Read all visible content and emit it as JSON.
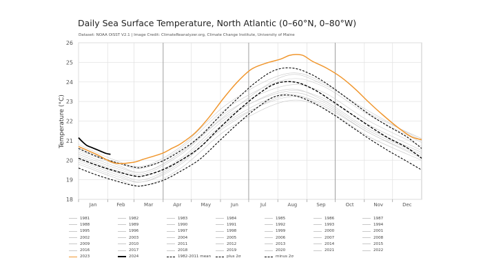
{
  "title": "Daily Sea Surface Temperature, North Atlantic (0–60°N, 0–80°W)",
  "subtitle": "Dataset: NOAA OISST V2.1 | Image Credit: ClimateReanalyzer.org, Climate Change Institute, University of Maine",
  "chart_data": {
    "type": "line",
    "ylabel": "Temperature (°C)",
    "ylim": [
      18,
      26
    ],
    "yticks": [
      18,
      19,
      20,
      21,
      22,
      23,
      24,
      25,
      26
    ],
    "xlim": [
      1,
      366
    ],
    "months": [
      {
        "label": "Jan",
        "start": 1
      },
      {
        "label": "Feb",
        "start": 32
      },
      {
        "label": "Mar",
        "start": 60
      },
      {
        "label": "Apr",
        "start": 91
      },
      {
        "label": "May",
        "start": 121
      },
      {
        "label": "Jun",
        "start": 152
      },
      {
        "label": "Jul",
        "start": 182
      },
      {
        "label": "Aug",
        "start": 213
      },
      {
        "label": "Sep",
        "start": 244
      },
      {
        "label": "Oct",
        "start": 274
      },
      {
        "label": "Nov",
        "start": 305
      },
      {
        "label": "Dec",
        "start": 335
      }
    ],
    "series": [
      {
        "name": "1982-2011 mean",
        "color": "#000000",
        "style": "dashed-bold",
        "x": [
          1,
          20,
          40,
          60,
          70,
          90,
          110,
          130,
          150,
          170,
          190,
          210,
          230,
          250,
          270,
          290,
          310,
          330,
          350,
          366
        ],
        "y": [
          20.1,
          19.75,
          19.45,
          19.2,
          19.2,
          19.5,
          20.0,
          20.65,
          21.6,
          22.5,
          23.3,
          23.9,
          24.0,
          23.65,
          23.05,
          22.4,
          21.75,
          21.15,
          20.65,
          20.1
        ]
      },
      {
        "name": "plus 2σ",
        "color": "#000000",
        "style": "dashed",
        "x": [
          1,
          20,
          40,
          60,
          70,
          90,
          110,
          130,
          150,
          170,
          190,
          210,
          230,
          250,
          270,
          290,
          310,
          330,
          350,
          366
        ],
        "y": [
          20.6,
          20.2,
          19.9,
          19.65,
          19.65,
          19.95,
          20.5,
          21.2,
          22.2,
          23.15,
          24.0,
          24.6,
          24.7,
          24.35,
          23.75,
          23.05,
          22.35,
          21.75,
          21.2,
          20.6
        ]
      },
      {
        "name": "minus 2σ",
        "color": "#000000",
        "style": "dashed",
        "x": [
          1,
          20,
          40,
          60,
          70,
          90,
          110,
          130,
          150,
          170,
          190,
          210,
          230,
          250,
          270,
          290,
          310,
          330,
          350,
          366
        ],
        "y": [
          19.6,
          19.25,
          18.95,
          18.7,
          18.7,
          18.95,
          19.45,
          20.05,
          20.95,
          21.85,
          22.65,
          23.25,
          23.3,
          22.95,
          22.4,
          21.75,
          21.1,
          20.5,
          19.95,
          19.5
        ]
      },
      {
        "name": "2023",
        "color": "#f0962d",
        "style": "solid",
        "x": [
          1,
          20,
          40,
          60,
          70,
          90,
          100,
          110,
          125,
          140,
          155,
          170,
          185,
          200,
          215,
          225,
          232,
          240,
          250,
          265,
          280,
          295,
          310,
          325,
          340,
          355,
          366
        ],
        "y": [
          20.7,
          20.3,
          19.85,
          19.9,
          20.05,
          20.35,
          20.6,
          20.85,
          21.4,
          22.2,
          23.15,
          24.0,
          24.65,
          24.95,
          25.15,
          25.35,
          25.4,
          25.35,
          25.05,
          24.7,
          24.25,
          23.65,
          22.95,
          22.3,
          21.7,
          21.2,
          21.05
        ]
      },
      {
        "name": "2024",
        "color": "#000000",
        "style": "solid-bold",
        "x": [
          1,
          5,
          10,
          15,
          20,
          25,
          30,
          35
        ],
        "y": [
          21.15,
          20.95,
          20.75,
          20.65,
          20.55,
          20.45,
          20.35,
          20.3
        ]
      }
    ],
    "background_years": [
      [
        20.3,
        19.6,
        19.3,
        20.3,
        22.3,
        23.5,
        23.2,
        21.8,
        20.5
      ],
      [
        20.0,
        19.3,
        18.9,
        19.8,
        21.9,
        23.2,
        22.9,
        21.4,
        20.2
      ],
      [
        19.8,
        19.1,
        18.7,
        19.6,
        21.6,
        23.0,
        22.7,
        21.2,
        20.0
      ],
      [
        20.5,
        19.8,
        19.4,
        20.4,
        22.5,
        23.8,
        23.5,
        22.0,
        20.7
      ],
      [
        20.2,
        19.5,
        19.2,
        20.1,
        22.2,
        23.6,
        23.1,
        21.6,
        20.4
      ],
      [
        20.6,
        19.9,
        19.6,
        20.6,
        22.7,
        24.1,
        23.8,
        22.3,
        20.9
      ],
      [
        19.9,
        19.2,
        18.9,
        19.9,
        21.8,
        23.3,
        22.8,
        21.4,
        20.1
      ],
      [
        20.4,
        19.7,
        19.4,
        20.4,
        22.4,
        24.3,
        23.9,
        22.5,
        21.0
      ],
      [
        20.8,
        20.0,
        19.7,
        20.7,
        22.9,
        24.4,
        24.0,
        22.4,
        21.1
      ],
      [
        20.1,
        19.4,
        19.0,
        20.0,
        22.0,
        23.4,
        23.0,
        21.5,
        20.3
      ]
    ],
    "background_x": [
      1,
      40,
      70,
      110,
      160,
      220,
      260,
      310,
      366
    ]
  },
  "legend": [
    {
      "label": "1981",
      "color": "#c8c8c8"
    },
    {
      "label": "1982",
      "color": "#c8c8c8"
    },
    {
      "label": "1983",
      "color": "#c8c8c8"
    },
    {
      "label": "1984",
      "color": "#c8c8c8"
    },
    {
      "label": "1985",
      "color": "#c8c8c8"
    },
    {
      "label": "1986",
      "color": "#c8c8c8"
    },
    {
      "label": "1987",
      "color": "#c8c8c8"
    },
    {
      "label": "1988",
      "color": "#c8c8c8"
    },
    {
      "label": "1989",
      "color": "#c8c8c8"
    },
    {
      "label": "1990",
      "color": "#c8c8c8"
    },
    {
      "label": "1991",
      "color": "#c8c8c8"
    },
    {
      "label": "1992",
      "color": "#c8c8c8"
    },
    {
      "label": "1993",
      "color": "#c8c8c8"
    },
    {
      "label": "1994",
      "color": "#c8c8c8"
    },
    {
      "label": "1995",
      "color": "#c8c8c8"
    },
    {
      "label": "1996",
      "color": "#c8c8c8"
    },
    {
      "label": "1997",
      "color": "#c8c8c8"
    },
    {
      "label": "1998",
      "color": "#c8c8c8"
    },
    {
      "label": "1999",
      "color": "#c8c8c8"
    },
    {
      "label": "2000",
      "color": "#c8c8c8"
    },
    {
      "label": "2001",
      "color": "#c8c8c8"
    },
    {
      "label": "2002",
      "color": "#c8c8c8"
    },
    {
      "label": "2003",
      "color": "#c8c8c8"
    },
    {
      "label": "2004",
      "color": "#c8c8c8"
    },
    {
      "label": "2005",
      "color": "#c8c8c8"
    },
    {
      "label": "2006",
      "color": "#c8c8c8"
    },
    {
      "label": "2007",
      "color": "#c8c8c8"
    },
    {
      "label": "2008",
      "color": "#c8c8c8"
    },
    {
      "label": "2009",
      "color": "#c8c8c8"
    },
    {
      "label": "2010",
      "color": "#c8c8c8"
    },
    {
      "label": "2011",
      "color": "#c8c8c8"
    },
    {
      "label": "2012",
      "color": "#c8c8c8"
    },
    {
      "label": "2013",
      "color": "#c8c8c8"
    },
    {
      "label": "2014",
      "color": "#c8c8c8"
    },
    {
      "label": "2015",
      "color": "#c8c8c8"
    },
    {
      "label": "2016",
      "color": "#c8c8c8"
    },
    {
      "label": "2017",
      "color": "#c8c8c8"
    },
    {
      "label": "2018",
      "color": "#c8c8c8"
    },
    {
      "label": "2019",
      "color": "#c8c8c8"
    },
    {
      "label": "2020",
      "color": "#c8c8c8"
    },
    {
      "label": "2021",
      "color": "#c8c8c8"
    },
    {
      "label": "2022",
      "color": "#c8c8c8"
    },
    {
      "label": "2023",
      "color": "#f0962d",
      "style": "solid"
    },
    {
      "label": "2024",
      "color": "#000000",
      "style": "solid-bold"
    },
    {
      "label": "1982-2011 mean",
      "color": "#000000",
      "style": "dashed-bold"
    },
    {
      "label": "plus 2σ",
      "color": "#000000",
      "style": "dashed"
    },
    {
      "label": "minus 2σ",
      "color": "#000000",
      "style": "dashed"
    }
  ]
}
